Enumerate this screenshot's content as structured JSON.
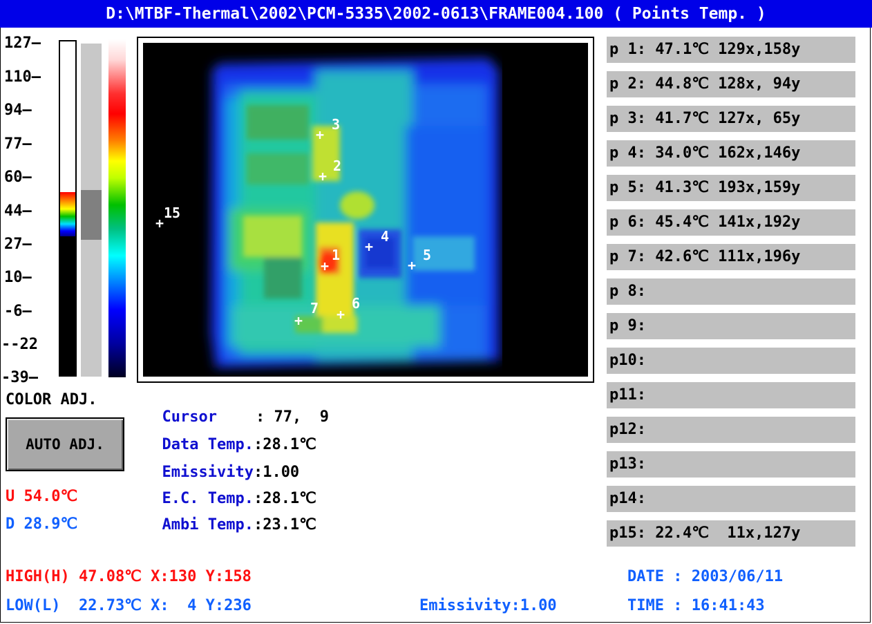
{
  "title": "D:\\MTBF-Thermal\\2002\\PCM-5335\\2002-0613\\FRAME004.100 ( Points Temp. )",
  "scale": {
    "ticks": [
      "127",
      "110",
      "94",
      "77",
      "60",
      "44",
      "27",
      "10",
      "-6",
      "-22",
      "-39"
    ]
  },
  "color_adj_label": "COLOR ADJ.",
  "auto_adj_button": "AUTO ADJ.",
  "upper": "U 54.0℃",
  "lower": "D 28.9℃",
  "info": {
    "cursor_label": "Cursor",
    "cursor_value": ": 77,  9",
    "data_temp_label": "Data Temp.",
    "data_temp_value": ":28.1℃",
    "emissivity_label": "Emissivity",
    "emissivity_value": ":1.00",
    "ec_temp_label": "E.C. Temp.",
    "ec_temp_value": ":28.1℃",
    "ambi_temp_label": "Ambi Temp.",
    "ambi_temp_value": ":23.1℃"
  },
  "markers": [
    "1",
    "2",
    "3",
    "4",
    "5",
    "6",
    "7",
    "15"
  ],
  "points": [
    "p 1: 47.1℃ 129x,158y",
    "p 2: 44.8℃ 128x, 94y",
    "p 3: 41.7℃ 127x, 65y",
    "p 4: 34.0℃ 162x,146y",
    "p 5: 41.3℃ 193x,159y",
    "p 6: 45.4℃ 141x,192y",
    "p 7: 42.6℃ 111x,196y",
    "p 8:",
    "p 9:",
    "p10:",
    "p11:",
    "p12:",
    "p13:",
    "p14:",
    "p15: 22.4℃  11x,127y"
  ],
  "footer": {
    "high": "HIGH(H) 47.08℃ X:130 Y:158",
    "low": "LOW(L)  22.73℃ X:  4 Y:236",
    "emissivity": "Emissivity:1.00",
    "date": "DATE : 2003/06/11",
    "time": "TIME : 16:41:43"
  },
  "colors": {
    "title_bg": "#0000e8",
    "label_blue": "#1010d0",
    "high_red": "#ff1010",
    "low_blue": "#1060ff",
    "panel_gray": "#c0c0c0"
  }
}
